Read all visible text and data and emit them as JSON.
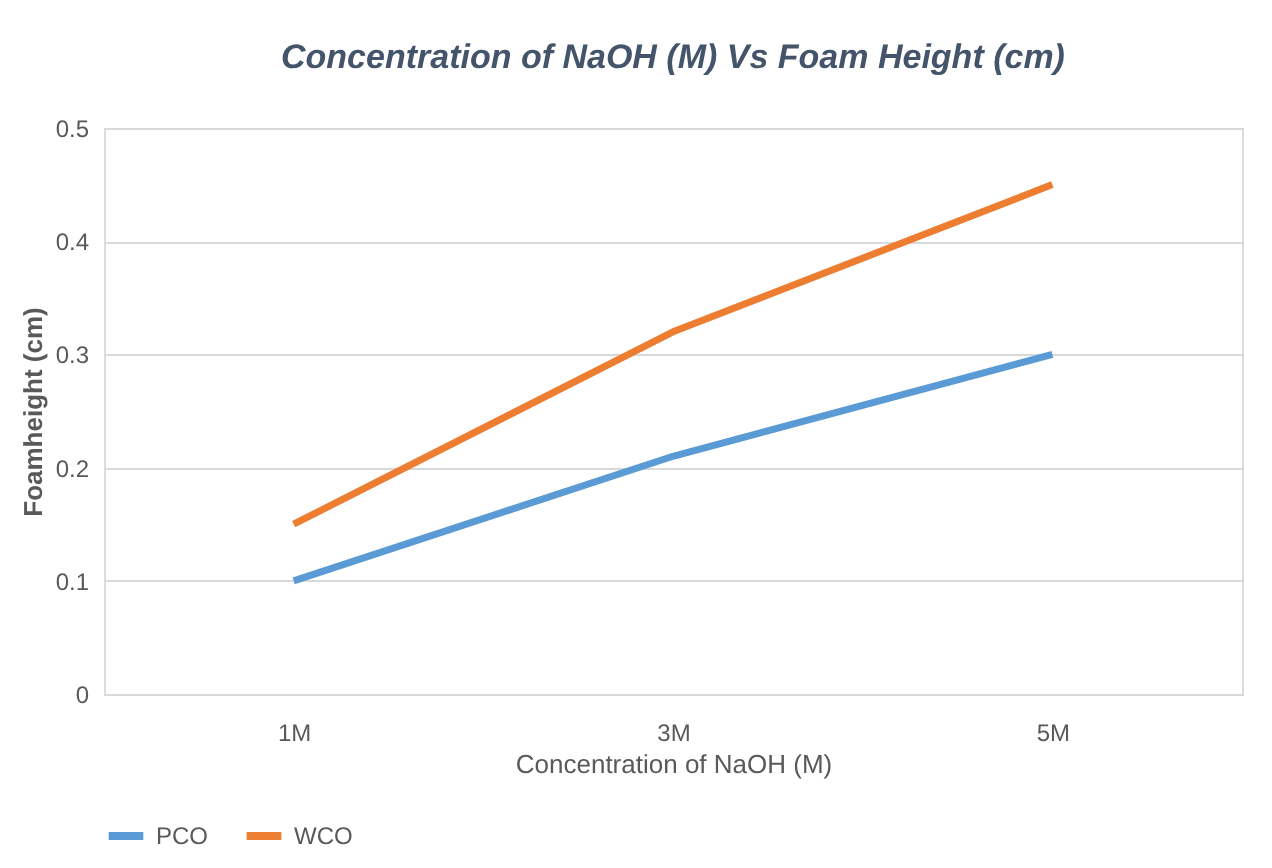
{
  "chart_data": {
    "type": "line",
    "title": "Concentration of NaOH (M) Vs Foam Height (cm)",
    "xlabel": "Concentration of NaOH (M)",
    "ylabel": "Foamheight (cm)",
    "categories": [
      "1M",
      "3M",
      "5M"
    ],
    "series": [
      {
        "name": "PCO",
        "color": "#5b9bd5",
        "values": [
          0.1,
          0.21,
          0.3
        ]
      },
      {
        "name": "WCO",
        "color": "#ed7d31",
        "values": [
          0.15,
          0.32,
          0.45
        ]
      }
    ],
    "ylim": [
      0,
      0.5
    ],
    "yticks": [
      0,
      0.1,
      0.2,
      0.3,
      0.4,
      0.5
    ],
    "grid": "y",
    "legend": "bottom",
    "marker": "none",
    "line_style": "solid"
  }
}
